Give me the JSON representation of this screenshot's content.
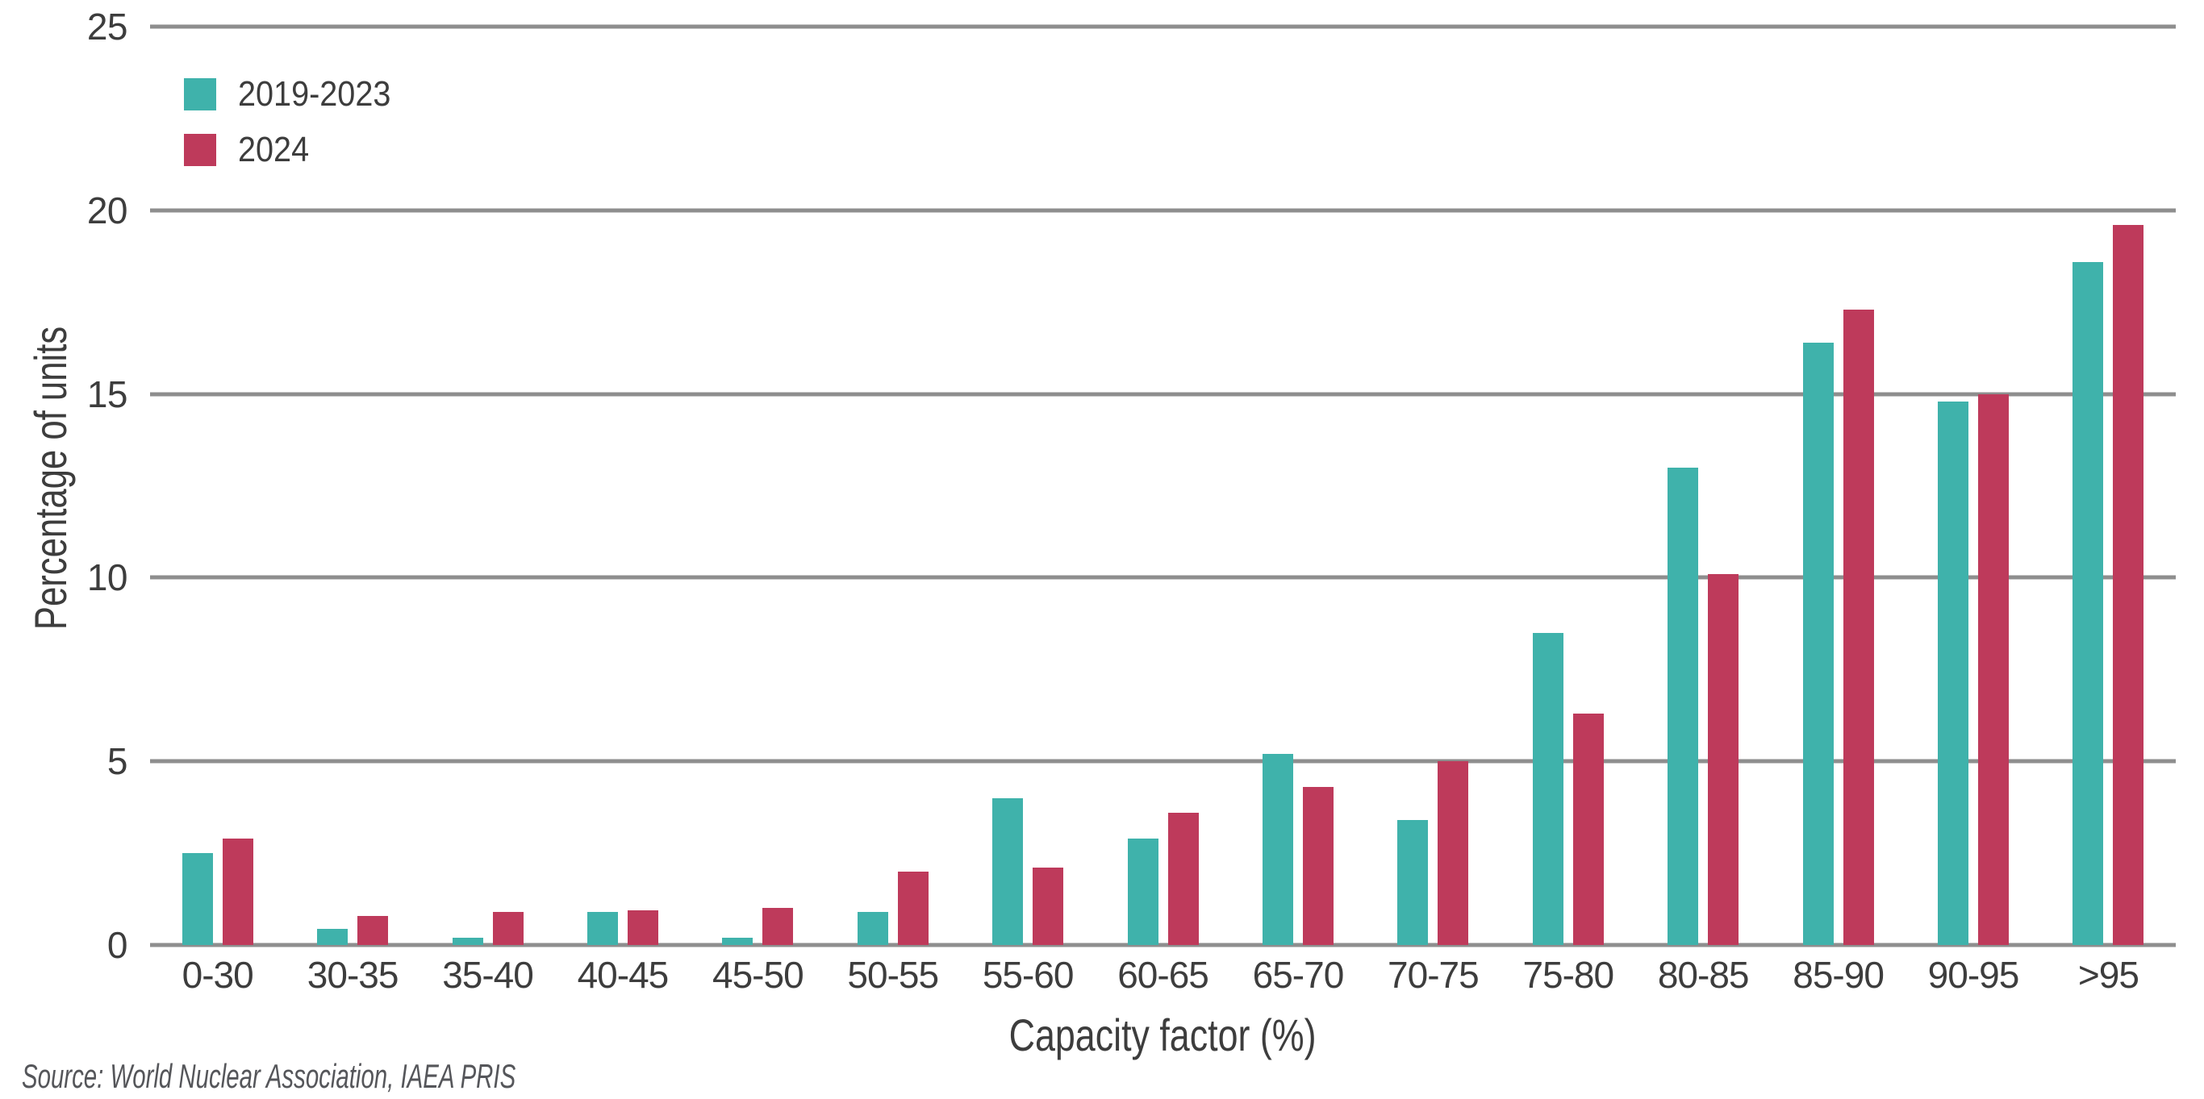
{
  "chart_data": {
    "type": "bar",
    "title": "",
    "xlabel": "Capacity factor (%)",
    "ylabel": "Percentage of units",
    "categories": [
      "0-30",
      "30-35",
      "35-40",
      "40-45",
      "45-50",
      "50-55",
      "55-60",
      "60-65",
      "65-70",
      "70-75",
      "75-80",
      "80-85",
      "85-90",
      "90-95",
      ">95"
    ],
    "series": [
      {
        "name": "2019-2023",
        "color": "#3fb2ab",
        "values": [
          2.5,
          0.45,
          0.2,
          0.9,
          0.2,
          0.9,
          4.0,
          2.9,
          5.2,
          3.4,
          8.5,
          13.0,
          16.4,
          14.8,
          18.6
        ]
      },
      {
        "name": "2024",
        "color": "#be3a5b",
        "values": [
          2.9,
          0.8,
          0.9,
          0.95,
          1.0,
          2.0,
          2.1,
          3.6,
          4.3,
          5.0,
          6.3,
          10.1,
          17.3,
          15.0,
          19.6
        ]
      }
    ],
    "ylim": [
      0,
      25
    ],
    "yticks": [
      25,
      20,
      15,
      10,
      5,
      0
    ],
    "grid": true,
    "legend_position": "top-left"
  },
  "legend": {
    "items": [
      {
        "label": "2019-2023"
      },
      {
        "label": "2024"
      }
    ]
  },
  "axes": {
    "x_title": "Capacity factor (%)",
    "y_title": "Percentage of units"
  },
  "source_note": "Source: World Nuclear Association, IAEA PRIS",
  "colors": {
    "series_1": "#3fb2ab",
    "series_2": "#be3a5b",
    "gridline": "#8e8e8e",
    "text": "#3d3d3d",
    "source_text": "#55565a",
    "background": "#ffffff"
  }
}
